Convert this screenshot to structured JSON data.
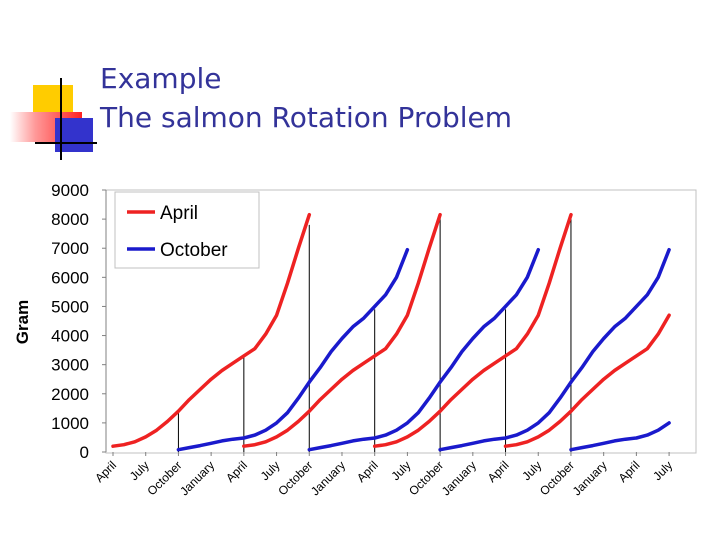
{
  "slide": {
    "title_line1": "Example",
    "title_line2": "The salmon Rotation Problem",
    "title_color": "#333399"
  },
  "colors": {
    "april": "#ee2222",
    "october": "#1a1acc",
    "deco_yellow": "#ffcc00",
    "deco_red": "#ff3333",
    "deco_blue": "#3333cc"
  },
  "chart_data": {
    "type": "line",
    "ylabel": "Gram",
    "ylim": [
      0,
      9000
    ],
    "yticks": [
      0,
      1000,
      2000,
      3000,
      4000,
      5000,
      6000,
      7000,
      8000,
      9000
    ],
    "grid": false,
    "legend_position": "top-left",
    "x_domain": [
      0,
      52
    ],
    "x_ticks": [
      {
        "x": 0,
        "label": "April"
      },
      {
        "x": 3,
        "label": "July"
      },
      {
        "x": 6,
        "label": "October"
      },
      {
        "x": 9,
        "label": "January"
      },
      {
        "x": 12,
        "label": "April"
      },
      {
        "x": 15,
        "label": "July"
      },
      {
        "x": 18,
        "label": "October"
      },
      {
        "x": 21,
        "label": "January"
      },
      {
        "x": 24,
        "label": "April"
      },
      {
        "x": 27,
        "label": "July"
      },
      {
        "x": 30,
        "label": "October"
      },
      {
        "x": 33,
        "label": "January"
      },
      {
        "x": 36,
        "label": "April"
      },
      {
        "x": 39,
        "label": "July"
      },
      {
        "x": 42,
        "label": "October"
      },
      {
        "x": 45,
        "label": "January"
      },
      {
        "x": 48,
        "label": "April"
      },
      {
        "x": 51,
        "label": "July"
      }
    ],
    "series": [
      {
        "name": "April",
        "color": "#ee2222",
        "segments": [
          {
            "x0": 0,
            "values": [
              200,
              250,
              350,
              520,
              750,
              1050,
              1400,
              1800,
              2150,
              2500,
              2800,
              3050,
              3300,
              3550,
              4050,
              4700,
              5800,
              7000,
              8150
            ]
          },
          {
            "x0": 12,
            "values": [
              200,
              250,
              350,
              520,
              750,
              1050,
              1400,
              1800,
              2150,
              2500,
              2800,
              3050,
              3300,
              3550,
              4050,
              4700,
              5800,
              7000,
              8150
            ]
          },
          {
            "x0": 24,
            "values": [
              200,
              250,
              350,
              520,
              750,
              1050,
              1400,
              1800,
              2150,
              2500,
              2800,
              3050,
              3300,
              3550,
              4050,
              4700,
              5800,
              7000,
              8150
            ]
          },
          {
            "x0": 36,
            "values": [
              200,
              250,
              350,
              520,
              750,
              1050,
              1400,
              1800,
              2150,
              2500,
              2800,
              3050,
              3300,
              3550,
              4050,
              4700
            ]
          }
        ]
      },
      {
        "name": "October",
        "color": "#1a1acc",
        "segments": [
          {
            "x0": 6,
            "values": [
              80,
              150,
              220,
              300,
              380,
              440,
              480,
              580,
              750,
              1000,
              1350,
              1850,
              2400,
              2900,
              3450,
              3900,
              4300,
              4600,
              5000,
              5400,
              6000,
              6950
            ]
          },
          {
            "x0": 18,
            "values": [
              80,
              150,
              220,
              300,
              380,
              440,
              480,
              580,
              750,
              1000,
              1350,
              1850,
              2400,
              2900,
              3450,
              3900,
              4300,
              4600,
              5000,
              5400,
              6000,
              6950
            ]
          },
          {
            "x0": 30,
            "values": [
              80,
              150,
              220,
              300,
              380,
              440,
              480,
              580,
              750,
              1000,
              1350,
              1850,
              2400,
              2900,
              3450,
              3900,
              4300,
              4600,
              5000,
              5400,
              6000,
              6950
            ]
          },
          {
            "x0": 42,
            "values": [
              80,
              150,
              220,
              300,
              380,
              440,
              480,
              580,
              750,
              1000
            ]
          }
        ]
      }
    ],
    "harvest_markers": [
      {
        "x": 6,
        "value": 1450
      },
      {
        "x": 12,
        "value": 3300
      },
      {
        "x": 18,
        "value": 7800
      },
      {
        "x": 24,
        "value": 4900
      },
      {
        "x": 30,
        "value": 8150
      },
      {
        "x": 36,
        "value": 4900
      },
      {
        "x": 42,
        "value": 8000
      }
    ]
  }
}
